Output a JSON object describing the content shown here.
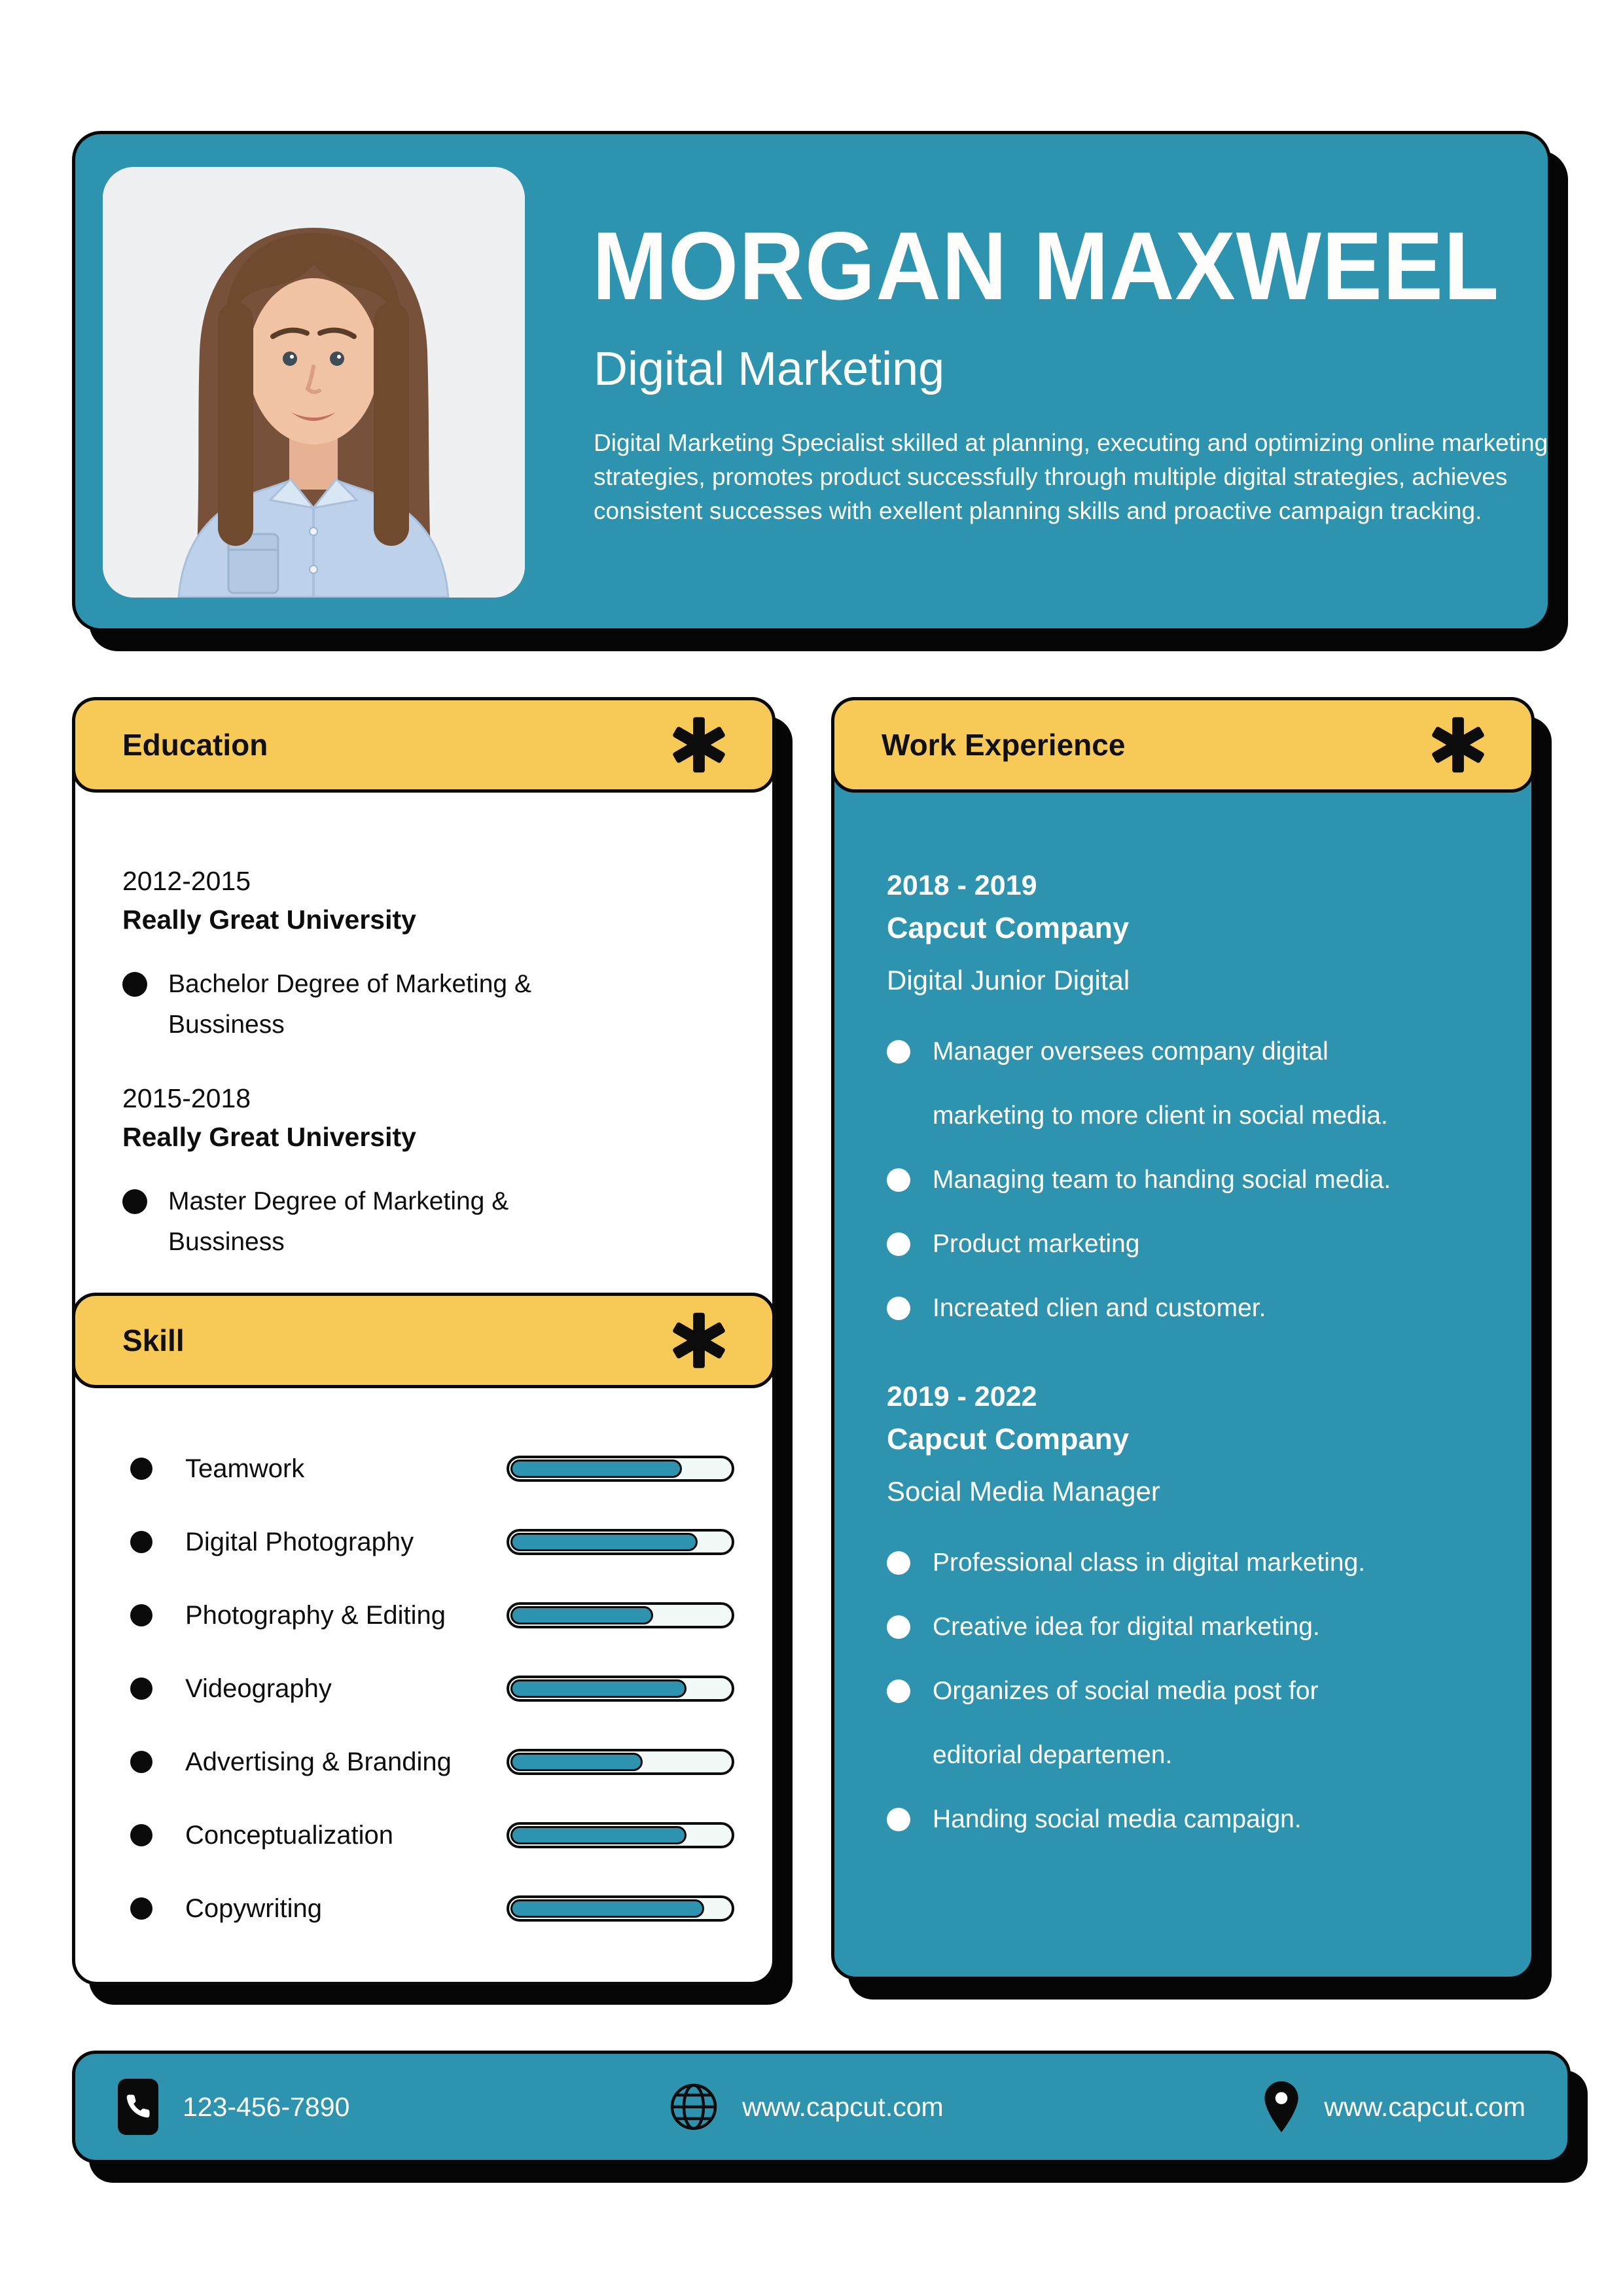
{
  "header": {
    "name": "MORGAN MAXWEEL",
    "title": "Digital Marketing",
    "summary": "Digital Marketing Specialist skilled at planning, executing and optimizing online marketing strategies, promotes product successfully through multiple digital strategies, achieves consistent successes with exellent planning skills and proactive campaign tracking."
  },
  "education": {
    "section_title": "Education",
    "entries": [
      {
        "years": "2012-2015",
        "school": "Really Great University",
        "degree": "Bachelor Degree of Marketing &\nBussiness"
      },
      {
        "years": "2015-2018",
        "school": "Really Great University",
        "degree": "Master Degree of Marketing &\nBussiness"
      }
    ]
  },
  "skills": {
    "section_title": "Skill",
    "items": [
      {
        "label": "Teamwork",
        "level": 78
      },
      {
        "label": "Digital Photography",
        "level": 85
      },
      {
        "label": "Photography & Editing",
        "level": 65
      },
      {
        "label": "Videography",
        "level": 80
      },
      {
        "label": "Advertising & Branding",
        "level": 60
      },
      {
        "label": "Conceptualization",
        "level": 80
      },
      {
        "label": "Copywriting",
        "level": 88
      }
    ]
  },
  "work": {
    "section_title": "Work Experience",
    "entries": [
      {
        "years": "2018 - 2019",
        "company": "Capcut Company",
        "role": "Digital Junior Digital",
        "points": [
          "Manager oversees company digital\nmarketing to more client in social media.",
          "Managing team to handing social media.",
          "Product marketing",
          "Increated clien and customer."
        ]
      },
      {
        "years": "2019 - 2022",
        "company": "Capcut Company",
        "role": "Social Media Manager",
        "points": [
          "Professional class in digital marketing.",
          "Creative idea for digital marketing.",
          "Organizes of social media post for\neditorial departemen.",
          "Handing social media campaign."
        ]
      }
    ]
  },
  "footer": {
    "phone": "123-456-7890",
    "website": "www.capcut.com",
    "location": "www.capcut.com"
  },
  "icons": {
    "section": "asterisk-icon",
    "phone": "phone-icon",
    "website": "globe-icon",
    "location": "pin-icon"
  },
  "colors": {
    "teal": "#2E93AE",
    "yellow": "#F7C957",
    "black": "#080808",
    "white": "#FFFFFF"
  }
}
